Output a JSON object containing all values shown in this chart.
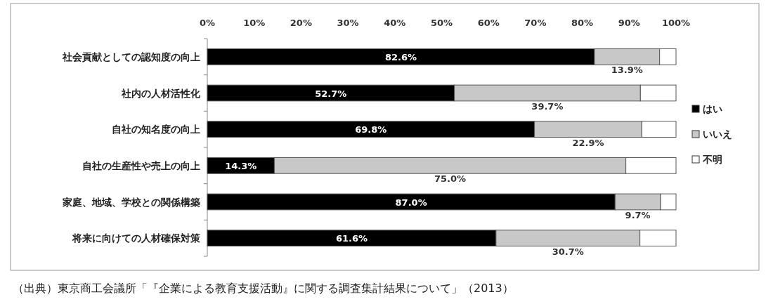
{
  "chart_data": {
    "type": "bar",
    "orientation": "horizontal",
    "stacked": true,
    "legend": "right",
    "categories": [
      "社会貢献としての認知度の向上",
      "社内の人材活性化",
      "自社の知名度の向上",
      "自社の生産性や売上の向上",
      "家庭、地域、学校との関係構築",
      "将来に向けての人材確保対策"
    ],
    "series": [
      {
        "name": "はい",
        "color": "#000000",
        "values": [
          82.6,
          52.7,
          69.8,
          14.3,
          87.0,
          61.6
        ],
        "value_labels": [
          "82.6%",
          "52.7%",
          "69.8%",
          "14.3%",
          "87.0%",
          "61.6%"
        ]
      },
      {
        "name": "いいえ",
        "color": "#c8c8c8",
        "values": [
          13.9,
          39.7,
          22.9,
          75.0,
          9.7,
          30.7
        ],
        "value_labels": [
          "13.9%",
          "39.7%",
          "22.9%",
          "75.0%",
          "9.7%",
          "30.7%"
        ]
      },
      {
        "name": "不明",
        "color": "#ffffff",
        "values": [
          3.5,
          7.6,
          7.3,
          10.7,
          3.3,
          7.7
        ]
      }
    ],
    "xlim": [
      0,
      100
    ],
    "xticks": [
      {
        "value": 0,
        "label": "0%"
      },
      {
        "value": 10,
        "label": "10%"
      },
      {
        "value": 20,
        "label": "20%"
      },
      {
        "value": 30,
        "label": "30%"
      },
      {
        "value": 40,
        "label": "40%"
      },
      {
        "value": 50,
        "label": "50%"
      },
      {
        "value": 60,
        "label": "60%"
      },
      {
        "value": 70,
        "label": "70%"
      },
      {
        "value": 80,
        "label": "80%"
      },
      {
        "value": 90,
        "label": "90%"
      },
      {
        "value": 100,
        "label": "100%"
      }
    ],
    "annotations": [
      "（出典）東京商工会議所「『企業による教育支援活動』に関する調査集計結果について」（2013）"
    ]
  }
}
